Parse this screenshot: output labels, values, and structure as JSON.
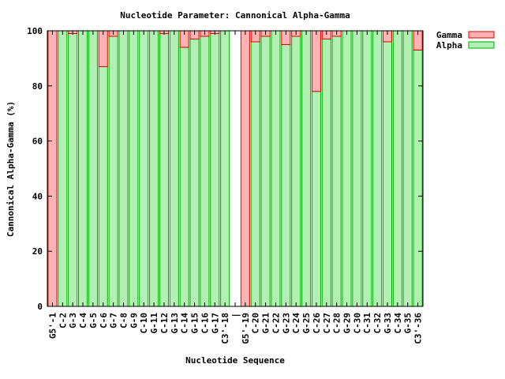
{
  "chart_data": {
    "type": "bar",
    "stacked": true,
    "title": "Nucleotide Parameter: Cannonical Alpha-Gamma",
    "xlabel": "Nucleotide Sequence",
    "ylabel": "Cannonical Alpha-Gamma (%)",
    "ylim": [
      0,
      100
    ],
    "yticks": [
      0,
      20,
      40,
      60,
      80,
      100
    ],
    "legend_position": "top-right-outside",
    "categories": [
      "G5'-1",
      "C-2",
      "G-3",
      "C-4",
      "G-5",
      "C-6",
      "G-7",
      "C-8",
      "G-9",
      "C-10",
      "G-11",
      "C-12",
      "G-13",
      "C-14",
      "G-15",
      "C-16",
      "G-17",
      "C3'-18",
      "|",
      "G5'-19",
      "C-20",
      "G-21",
      "C-22",
      "G-23",
      "C-24",
      "G-25",
      "C-26",
      "C-27",
      "C-28",
      "G-29",
      "C-30",
      "C-31",
      "C-32",
      "G-33",
      "C-34",
      "G-35",
      "C3'-36"
    ],
    "series": [
      {
        "name": "Alpha",
        "color": "#b3f0b3",
        "stroke": "#00aa00",
        "values": [
          0,
          100,
          99,
          100,
          100,
          87,
          98,
          100,
          100,
          100,
          100,
          99,
          100,
          94,
          97,
          98,
          99,
          100,
          null,
          0,
          96,
          98,
          100,
          95,
          98,
          100,
          78,
          97,
          98,
          100,
          100,
          100,
          100,
          96,
          100,
          100,
          93
        ]
      },
      {
        "name": "Gamma",
        "color": "#ffb3b3",
        "stroke": "#dd0000",
        "values": [
          100,
          0,
          1,
          0,
          0,
          13,
          2,
          0,
          0,
          0,
          0,
          1,
          0,
          6,
          3,
          2,
          1,
          0,
          null,
          100,
          4,
          2,
          0,
          5,
          2,
          0,
          22,
          3,
          2,
          0,
          0,
          0,
          0,
          4,
          0,
          0,
          7
        ]
      }
    ]
  }
}
